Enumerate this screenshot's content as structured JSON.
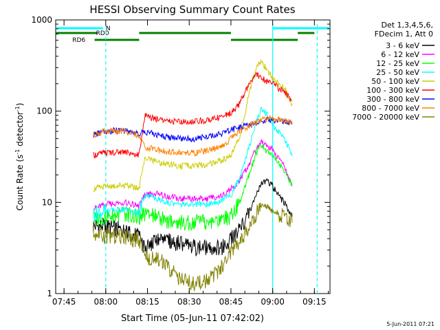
{
  "chart_data": {
    "type": "line",
    "title": "HESSI Observing Summary Count Rates",
    "xlabel": "Start Time (05-Jun-11 07:42:02)",
    "ylabel_main": "Count Rate (s",
    "ylabel_sup1": "-1",
    "ylabel_mid": " detector",
    "ylabel_sup2": "-1",
    "ylabel_end": ")",
    "y_scale": "log",
    "ylim": [
      1,
      1000
    ],
    "xlim_minutes": [
      0,
      98.6
    ],
    "x_tick_minutes": [
      3,
      18,
      33,
      48,
      63,
      78,
      93
    ],
    "x_tick_labels": [
      "07:45",
      "08:00",
      "08:15",
      "08:30",
      "08:45",
      "09:00",
      "09:15"
    ],
    "y_ticks": [
      1,
      10,
      100,
      1000
    ],
    "y_tick_labels": [
      "1",
      "10",
      "100",
      "1000"
    ],
    "footer_date": "5-Jun-2011 07:21",
    "legend": {
      "placement": "right",
      "header": [
        "Det 1,3,4,5,6,",
        "FDecim 1, Att 0"
      ],
      "entries": [
        {
          "label": "3 - 6 keV",
          "color": "#000000"
        },
        {
          "label": "6 - 12 keV",
          "color": "#ff00ff"
        },
        {
          "label": "12 - 25 keV",
          "color": "#00ff00"
        },
        {
          "label": "25 - 50 keV",
          "color": "#00ffff"
        },
        {
          "label": "50 - 100 keV",
          "color": "#cccc00"
        },
        {
          "label": "100 - 300 keV",
          "color": "#ff0000"
        },
        {
          "label": "300 - 800 keV",
          "color": "#0000ff"
        },
        {
          "label": "800 - 7000 keV",
          "color": "#ff8000"
        },
        {
          "label": "7000 - 20000 keV",
          "color": "#808000"
        }
      ]
    },
    "flags": [
      {
        "label": "N",
        "color": "#00ffff",
        "segments": [
          [
            0,
            17
          ],
          [
            78,
            98.6
          ]
        ]
      },
      {
        "label": "RD0",
        "color": "#008000",
        "segments": [
          [
            0,
            15
          ],
          [
            30,
            63
          ],
          [
            87,
            93
          ]
        ]
      },
      {
        "label": "RD6",
        "color": "#008000",
        "segments": [
          [
            14,
            30
          ],
          [
            63,
            87
          ]
        ]
      }
    ],
    "vlines": [
      {
        "minute": 18,
        "style": "dashed",
        "color": "#00ffff"
      },
      {
        "minute": 78,
        "style": "solid",
        "color": "#00ffff"
      },
      {
        "minute": 94,
        "style": "dashed",
        "color": "#00ffff"
      }
    ],
    "series": [
      {
        "name": "3 - 6 keV",
        "color": "#000000",
        "x": [
          13.5,
          18,
          25,
          30,
          32,
          36,
          40,
          45,
          50,
          55,
          60,
          63,
          66,
          70,
          72,
          74,
          76,
          78,
          80,
          82,
          84,
          85
        ],
        "y": [
          5.5,
          5.5,
          4.8,
          4.2,
          3.0,
          3.8,
          3.8,
          3.5,
          3.2,
          3.2,
          3.2,
          4.0,
          5.0,
          8.0,
          12,
          16,
          17,
          15,
          12,
          10,
          8,
          7
        ]
      },
      {
        "name": "6 - 12 keV",
        "color": "#ff00ff",
        "x": [
          13.5,
          18,
          25,
          30,
          32,
          36,
          40,
          45,
          50,
          55,
          60,
          63,
          66,
          70,
          72,
          74,
          76,
          78,
          80,
          82,
          84,
          85
        ],
        "y": [
          8.5,
          9.5,
          10,
          9,
          12,
          12.5,
          11.5,
          11,
          11,
          11,
          12,
          14,
          17,
          28,
          38,
          45,
          42,
          38,
          30,
          25,
          18,
          15
        ]
      },
      {
        "name": "12 - 25 keV",
        "color": "#00ff00",
        "x": [
          13.5,
          18,
          25,
          30,
          32,
          36,
          40,
          45,
          50,
          55,
          60,
          63,
          66,
          70,
          72,
          74,
          76,
          78,
          80,
          82,
          84,
          85
        ],
        "y": [
          6.5,
          7,
          7.5,
          6.8,
          7.5,
          7,
          6.3,
          6,
          6,
          6,
          6.5,
          7,
          10,
          22,
          35,
          42,
          36,
          32,
          28,
          22,
          18,
          15
        ]
      },
      {
        "name": "25 - 50 keV",
        "color": "#00ffff",
        "x": [
          13.5,
          18,
          25,
          30,
          32,
          36,
          40,
          45,
          50,
          55,
          60,
          63,
          66,
          70,
          72,
          74,
          76,
          78,
          80,
          82,
          84,
          85
        ],
        "y": [
          7.5,
          8,
          8.5,
          7.5,
          12,
          11,
          10,
          9.5,
          9.5,
          9.5,
          10.5,
          12,
          18,
          45,
          75,
          110,
          90,
          70,
          60,
          50,
          38,
          32
        ]
      },
      {
        "name": "50 - 100 keV",
        "color": "#cccc00",
        "x": [
          13.5,
          18,
          25,
          30,
          32,
          36,
          40,
          45,
          50,
          55,
          60,
          63,
          66,
          70,
          72,
          74,
          76,
          78,
          80,
          82,
          84,
          85
        ],
        "y": [
          14,
          15,
          15.5,
          14,
          30,
          28,
          26,
          25,
          25,
          26,
          29,
          32,
          50,
          180,
          300,
          350,
          280,
          230,
          200,
          180,
          140,
          120
        ]
      },
      {
        "name": "100 - 300 keV",
        "color": "#ff0000",
        "x": [
          13.5,
          18,
          25,
          30,
          32,
          36,
          40,
          45,
          50,
          55,
          60,
          63,
          66,
          70,
          72,
          74,
          76,
          78,
          80,
          82,
          84,
          85
        ],
        "y": [
          33,
          35,
          36,
          33,
          88,
          82,
          78,
          76,
          77,
          80,
          88,
          95,
          120,
          210,
          250,
          230,
          210,
          200,
          180,
          165,
          140,
          130
        ]
      },
      {
        "name": "300 - 800 keV",
        "color": "#0000ff",
        "x": [
          13.5,
          18,
          25,
          30,
          32,
          36,
          40,
          45,
          50,
          55,
          60,
          63,
          66,
          70,
          72,
          74,
          76,
          78,
          80,
          82,
          84,
          85
        ],
        "y": [
          55,
          60,
          62,
          55,
          60,
          55,
          52,
          50,
          50,
          52,
          57,
          62,
          66,
          70,
          75,
          78,
          80,
          80,
          80,
          78,
          75,
          72
        ]
      },
      {
        "name": "800 - 7000 keV",
        "color": "#ff8000",
        "x": [
          13.5,
          18,
          25,
          30,
          32,
          36,
          40,
          45,
          50,
          55,
          60,
          63,
          66,
          70,
          72,
          74,
          76,
          78,
          80,
          82,
          84,
          85
        ],
        "y": [
          55,
          60,
          60,
          54,
          40,
          38,
          36,
          35,
          35,
          37,
          41,
          50,
          60,
          70,
          76,
          80,
          82,
          82,
          81,
          79,
          76,
          74
        ]
      },
      {
        "name": "7000 - 20000 keV",
        "color": "#808000",
        "x": [
          13.5,
          18,
          25,
          30,
          32,
          36,
          40,
          45,
          50,
          55,
          60,
          63,
          66,
          70,
          72,
          74,
          76,
          78,
          80,
          82,
          84,
          85
        ],
        "y": [
          4.5,
          4.3,
          4.2,
          3.8,
          2.5,
          2.5,
          2.0,
          1.4,
          1.3,
          1.4,
          2.0,
          2.8,
          3.5,
          5.5,
          7.5,
          9.0,
          9.0,
          8.0,
          7.5,
          7.0,
          6.5,
          6.0
        ]
      }
    ]
  }
}
